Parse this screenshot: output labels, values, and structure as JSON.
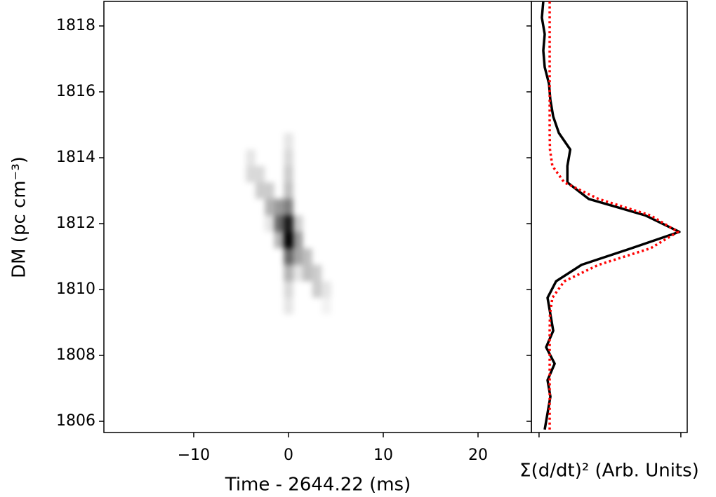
{
  "chart_data": [
    {
      "type": "heatmap",
      "xlabel": "Time - 2644.22 (ms)",
      "ylabel": "DM (pc cm⁻³)",
      "xlim": [
        -19.48,
        25.63
      ],
      "ylim": [
        1805.66,
        1818.745
      ],
      "xticks": [
        {
          "value": -10,
          "label": "−10"
        },
        0,
        10,
        20
      ],
      "yticks": [
        1806,
        1808,
        1810,
        1812,
        1814,
        1816,
        1818
      ],
      "x": [
        -4,
        -3,
        -2,
        -1,
        0,
        1,
        2,
        3,
        4
      ],
      "y": [
        1814.5,
        1814,
        1813.5,
        1813,
        1812.5,
        1812,
        1811.5,
        1811,
        1810.5,
        1810,
        1809.5
      ],
      "color": "#000000",
      "z": [
        [
          0,
          0,
          0,
          0,
          0.1,
          0,
          0,
          0,
          0
        ],
        [
          0.1,
          0,
          0,
          0,
          0.15,
          0,
          0,
          0,
          0
        ],
        [
          0.15,
          0.15,
          0,
          0,
          0.2,
          0,
          0,
          0,
          0
        ],
        [
          0,
          0.2,
          0.2,
          0,
          0.25,
          0,
          0,
          0,
          0
        ],
        [
          0,
          0,
          0.3,
          0.4,
          0.5,
          0,
          0,
          0,
          0
        ],
        [
          0,
          0,
          0.1,
          0.6,
          0.9,
          0.2,
          0,
          0,
          0
        ],
        [
          0,
          0,
          0,
          0.3,
          1.0,
          0.4,
          0,
          0,
          0
        ],
        [
          0,
          0,
          0,
          0,
          0.6,
          0.35,
          0.25,
          0,
          0
        ],
        [
          0,
          0,
          0,
          0,
          0.3,
          0.1,
          0.25,
          0.2,
          0
        ],
        [
          0,
          0,
          0,
          0,
          0.15,
          0,
          0,
          0.2,
          0.1
        ],
        [
          0,
          0,
          0,
          0,
          0.1,
          0,
          0,
          0,
          0.05
        ]
      ]
    },
    {
      "type": "line",
      "xlabel": "Σ(d/dt)² (Arb. Units)",
      "xlim": [
        -0.054,
        1.045
      ],
      "ylim": [
        1805.66,
        1818.745
      ],
      "xticks": [
        0,
        1
      ],
      "yticks": [
        1806,
        1808,
        1810,
        1812,
        1814,
        1816,
        1818
      ],
      "y": [
        1805.75,
        1806.25,
        1806.75,
        1807.25,
        1807.75,
        1808.25,
        1808.75,
        1809.25,
        1809.75,
        1810.25,
        1810.75,
        1811.25,
        1811.75,
        1812.25,
        1812.75,
        1813.25,
        1813.75,
        1814.25,
        1814.75,
        1815.25,
        1815.75,
        1816.25,
        1816.75,
        1817.25,
        1817.75,
        1818.25,
        1818.75
      ],
      "series": [
        {
          "color": "#000000",
          "linestyle": "solid",
          "values": [
            0.04,
            0.06,
            0.08,
            0.06,
            0.11,
            0.05,
            0.1,
            0.08,
            0.06,
            0.12,
            0.3,
            0.65,
            0.99,
            0.75,
            0.35,
            0.2,
            0.2,
            0.22,
            0.14,
            0.1,
            0.08,
            0.07,
            0.04,
            0.03,
            0.04,
            0.02,
            0.03
          ]
        },
        {
          "color": "#ff0000",
          "linestyle": "dotted",
          "values": [
            0.075,
            0.075,
            0.075,
            0.075,
            0.075,
            0.075,
            0.075,
            0.077,
            0.094,
            0.178,
            0.42,
            0.786,
            0.98,
            0.786,
            0.42,
            0.178,
            0.094,
            0.077,
            0.075,
            0.075,
            0.075,
            0.075,
            0.075,
            0.075,
            0.075,
            0.075,
            0.075
          ]
        }
      ]
    }
  ]
}
